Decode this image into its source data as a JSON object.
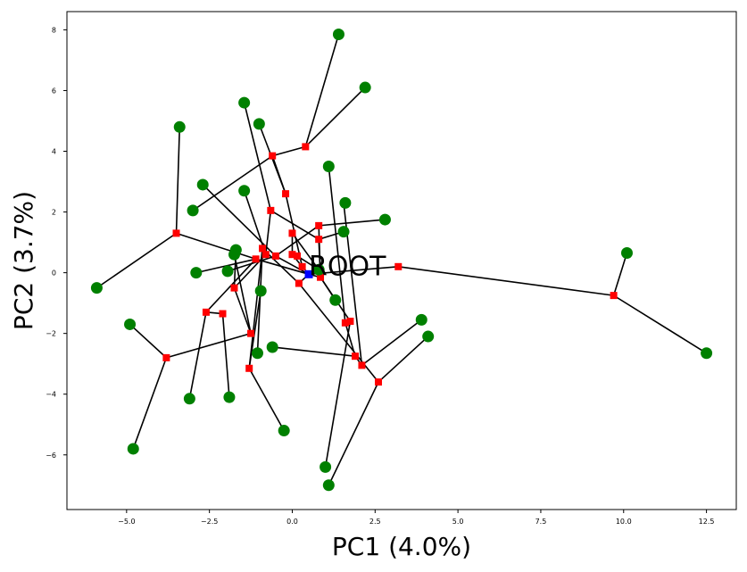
{
  "chart_data": {
    "type": "scatter",
    "title": "",
    "xlabel": "PC1 (4.0%)",
    "ylabel": "PC2 (3.7%)",
    "xlim": [
      -6.8,
      13.4
    ],
    "ylim": [
      -7.8,
      8.6
    ],
    "xticks": [
      -5.0,
      -2.5,
      0.0,
      2.5,
      5.0,
      7.5,
      10.0,
      12.5
    ],
    "xtick_labels": [
      "−5.0",
      "−2.5",
      "0.0",
      "2.5",
      "5.0",
      "7.5",
      "10.0",
      "12.5"
    ],
    "yticks": [
      -6,
      -4,
      -2,
      0,
      2,
      4,
      6,
      8
    ],
    "ytick_labels": [
      "−6",
      "−4",
      "−2",
      "0",
      "2",
      "4",
      "6",
      "8"
    ],
    "grid": false,
    "colors": {
      "leaf": "#008000",
      "internal": "#ff0000",
      "root": "#0000ff",
      "edge": "#000000"
    },
    "root": {
      "label": "ROOT",
      "x": 0.5,
      "y": -0.05
    },
    "leaves": [
      {
        "x": 1.4,
        "y": 7.85
      },
      {
        "x": 2.2,
        "y": 6.1
      },
      {
        "x": -1.45,
        "y": 5.6
      },
      {
        "x": -1.0,
        "y": 4.9
      },
      {
        "x": -3.4,
        "y": 4.8
      },
      {
        "x": 1.1,
        "y": 3.5
      },
      {
        "x": -2.7,
        "y": 2.9
      },
      {
        "x": -1.45,
        "y": 2.7
      },
      {
        "x": 1.6,
        "y": 2.3
      },
      {
        "x": -3.0,
        "y": 2.05
      },
      {
        "x": 2.8,
        "y": 1.75
      },
      {
        "x": 1.55,
        "y": 1.35
      },
      {
        "x": -1.7,
        "y": 0.75
      },
      {
        "x": -1.75,
        "y": 0.6
      },
      {
        "x": -1.95,
        "y": 0.05
      },
      {
        "x": -2.9,
        "y": 0.0
      },
      {
        "x": 0.8,
        "y": 0.1
      },
      {
        "x": -5.9,
        "y": -0.5
      },
      {
        "x": -0.95,
        "y": -0.6
      },
      {
        "x": 1.3,
        "y": -0.9
      },
      {
        "x": -4.9,
        "y": -1.7
      },
      {
        "x": 3.9,
        "y": -1.55
      },
      {
        "x": 4.1,
        "y": -2.1
      },
      {
        "x": -0.6,
        "y": -2.45
      },
      {
        "x": -1.05,
        "y": -2.65
      },
      {
        "x": -3.1,
        "y": -4.15
      },
      {
        "x": -1.9,
        "y": -4.1
      },
      {
        "x": -0.25,
        "y": -5.2
      },
      {
        "x": -4.8,
        "y": -5.8
      },
      {
        "x": 1.0,
        "y": -6.4
      },
      {
        "x": 1.1,
        "y": -7.0
      },
      {
        "x": 10.1,
        "y": 0.65
      },
      {
        "x": 12.5,
        "y": -2.65
      }
    ],
    "internal_nodes": [
      {
        "x": 0.4,
        "y": 4.15
      },
      {
        "x": -0.6,
        "y": 3.85
      },
      {
        "x": -0.2,
        "y": 2.6
      },
      {
        "x": -0.65,
        "y": 2.05
      },
      {
        "x": -3.5,
        "y": 1.3
      },
      {
        "x": 0.8,
        "y": 1.55
      },
      {
        "x": 0.0,
        "y": 1.3
      },
      {
        "x": 0.8,
        "y": 1.1
      },
      {
        "x": -0.9,
        "y": 0.8
      },
      {
        "x": -0.8,
        "y": 0.6
      },
      {
        "x": -0.5,
        "y": 0.55
      },
      {
        "x": -1.1,
        "y": 0.45
      },
      {
        "x": 0.0,
        "y": 0.6
      },
      {
        "x": 0.15,
        "y": 0.55
      },
      {
        "x": 0.3,
        "y": 0.2
      },
      {
        "x": 3.2,
        "y": 0.2
      },
      {
        "x": 0.85,
        "y": -0.15
      },
      {
        "x": 0.2,
        "y": -0.35
      },
      {
        "x": -1.75,
        "y": -0.5
      },
      {
        "x": -2.6,
        "y": -1.3
      },
      {
        "x": -2.1,
        "y": -1.35
      },
      {
        "x": 1.6,
        "y": -1.65
      },
      {
        "x": 1.75,
        "y": -1.6
      },
      {
        "x": -1.25,
        "y": -2.0
      },
      {
        "x": 1.9,
        "y": -2.75
      },
      {
        "x": 2.1,
        "y": -3.05
      },
      {
        "x": -3.8,
        "y": -2.8
      },
      {
        "x": -1.3,
        "y": -3.15
      },
      {
        "x": 2.6,
        "y": -3.6
      },
      {
        "x": 9.7,
        "y": -0.75
      }
    ],
    "edges": [
      [
        [
          0.5,
          -0.05
        ],
        [
          0.3,
          0.2
        ]
      ],
      [
        [
          0.5,
          -0.05
        ],
        [
          0.85,
          -0.15
        ]
      ],
      [
        [
          0.5,
          -0.05
        ],
        [
          0.2,
          -0.35
        ]
      ],
      [
        [
          0.5,
          -0.05
        ],
        [
          -0.5,
          0.55
        ]
      ],
      [
        [
          0.5,
          -0.05
        ],
        [
          3.2,
          0.2
        ]
      ],
      [
        [
          0.5,
          -0.05
        ],
        [
          -1.1,
          0.45
        ]
      ],
      [
        [
          3.2,
          0.2
        ],
        [
          9.7,
          -0.75
        ]
      ],
      [
        [
          9.7,
          -0.75
        ],
        [
          10.1,
          0.65
        ]
      ],
      [
        [
          9.7,
          -0.75
        ],
        [
          12.5,
          -2.65
        ]
      ],
      [
        [
          0.3,
          0.2
        ],
        [
          0.0,
          0.6
        ]
      ],
      [
        [
          0.0,
          0.6
        ],
        [
          0.15,
          0.55
        ]
      ],
      [
        [
          0.15,
          0.55
        ],
        [
          0.8,
          0.1
        ]
      ],
      [
        [
          0.0,
          0.6
        ],
        [
          0.0,
          1.3
        ]
      ],
      [
        [
          0.0,
          1.3
        ],
        [
          0.8,
          0.1
        ]
      ],
      [
        [
          0.3,
          0.2
        ],
        [
          -0.2,
          2.6
        ]
      ],
      [
        [
          -0.2,
          2.6
        ],
        [
          -0.6,
          3.85
        ]
      ],
      [
        [
          -0.6,
          3.85
        ],
        [
          0.4,
          4.15
        ]
      ],
      [
        [
          0.4,
          4.15
        ],
        [
          1.4,
          7.85
        ]
      ],
      [
        [
          0.4,
          4.15
        ],
        [
          2.2,
          6.1
        ]
      ],
      [
        [
          -0.6,
          3.85
        ],
        [
          -3.0,
          2.05
        ]
      ],
      [
        [
          -0.2,
          2.6
        ],
        [
          -1.0,
          4.9
        ]
      ],
      [
        [
          0.85,
          -0.15
        ],
        [
          0.8,
          1.55
        ]
      ],
      [
        [
          0.8,
          1.55
        ],
        [
          2.8,
          1.75
        ]
      ],
      [
        [
          0.8,
          1.55
        ],
        [
          -0.5,
          0.55
        ]
      ],
      [
        [
          0.85,
          -0.15
        ],
        [
          0.8,
          1.1
        ]
      ],
      [
        [
          0.8,
          1.1
        ],
        [
          1.55,
          1.35
        ]
      ],
      [
        [
          0.8,
          1.1
        ],
        [
          -0.65,
          2.05
        ]
      ],
      [
        [
          -0.65,
          2.05
        ],
        [
          -1.45,
          5.6
        ]
      ],
      [
        [
          -0.65,
          2.05
        ],
        [
          -0.8,
          0.6
        ]
      ],
      [
        [
          -0.8,
          0.6
        ],
        [
          -1.45,
          2.7
        ]
      ],
      [
        [
          -0.8,
          0.6
        ],
        [
          -1.75,
          -0.5
        ]
      ],
      [
        [
          -1.75,
          -0.5
        ],
        [
          -1.7,
          0.75
        ]
      ],
      [
        [
          -1.75,
          -0.5
        ],
        [
          -1.25,
          -2.0
        ]
      ],
      [
        [
          -1.25,
          -2.0
        ],
        [
          -1.75,
          0.6
        ]
      ],
      [
        [
          -1.25,
          -2.0
        ],
        [
          -3.8,
          -2.8
        ]
      ],
      [
        [
          -3.8,
          -2.8
        ],
        [
          -4.9,
          -1.7
        ]
      ],
      [
        [
          -3.8,
          -2.8
        ],
        [
          -4.8,
          -5.8
        ]
      ],
      [
        [
          0.85,
          -0.15
        ],
        [
          1.3,
          -0.9
        ]
      ],
      [
        [
          0.85,
          -0.15
        ],
        [
          1.75,
          -1.6
        ]
      ],
      [
        [
          1.75,
          -1.6
        ],
        [
          1.0,
          -6.4
        ]
      ],
      [
        [
          1.75,
          -1.6
        ],
        [
          1.6,
          -1.65
        ]
      ],
      [
        [
          1.6,
          -1.65
        ],
        [
          1.1,
          3.5
        ]
      ],
      [
        [
          1.6,
          -1.65
        ],
        [
          1.9,
          -2.75
        ]
      ],
      [
        [
          1.9,
          -2.75
        ],
        [
          -0.6,
          -2.45
        ]
      ],
      [
        [
          1.9,
          -2.75
        ],
        [
          2.1,
          -3.05
        ]
      ],
      [
        [
          2.1,
          -3.05
        ],
        [
          3.9,
          -1.55
        ]
      ],
      [
        [
          2.1,
          -3.05
        ],
        [
          1.55,
          2.3
        ]
      ],
      [
        [
          0.2,
          -0.35
        ],
        [
          2.6,
          -3.6
        ]
      ],
      [
        [
          2.6,
          -3.6
        ],
        [
          4.1,
          -2.1
        ]
      ],
      [
        [
          2.6,
          -3.6
        ],
        [
          1.1,
          -7.0
        ]
      ],
      [
        [
          0.2,
          -0.35
        ],
        [
          -0.9,
          0.8
        ]
      ],
      [
        [
          -0.9,
          0.8
        ],
        [
          -1.3,
          -3.15
        ]
      ],
      [
        [
          -1.3,
          -3.15
        ],
        [
          -0.95,
          -0.6
        ]
      ],
      [
        [
          -1.3,
          -3.15
        ],
        [
          -0.25,
          -5.2
        ]
      ],
      [
        [
          -0.9,
          0.8
        ],
        [
          -1.05,
          -2.65
        ]
      ],
      [
        [
          -1.1,
          0.45
        ],
        [
          -2.6,
          -1.3
        ]
      ],
      [
        [
          -2.6,
          -1.3
        ],
        [
          -2.1,
          -1.35
        ]
      ],
      [
        [
          -2.1,
          -1.35
        ],
        [
          -1.9,
          -4.1
        ]
      ],
      [
        [
          -2.6,
          -1.3
        ],
        [
          -3.1,
          -4.15
        ]
      ],
      [
        [
          -1.1,
          0.45
        ],
        [
          -2.9,
          0.0
        ]
      ],
      [
        [
          -1.1,
          0.45
        ],
        [
          -3.5,
          1.3
        ]
      ],
      [
        [
          -3.5,
          1.3
        ],
        [
          -3.4,
          4.8
        ]
      ],
      [
        [
          -3.5,
          1.3
        ],
        [
          -5.9,
          -0.5
        ]
      ],
      [
        [
          -0.5,
          0.55
        ],
        [
          -2.7,
          2.9
        ]
      ],
      [
        [
          -0.5,
          0.55
        ],
        [
          -1.95,
          0.05
        ]
      ]
    ]
  }
}
